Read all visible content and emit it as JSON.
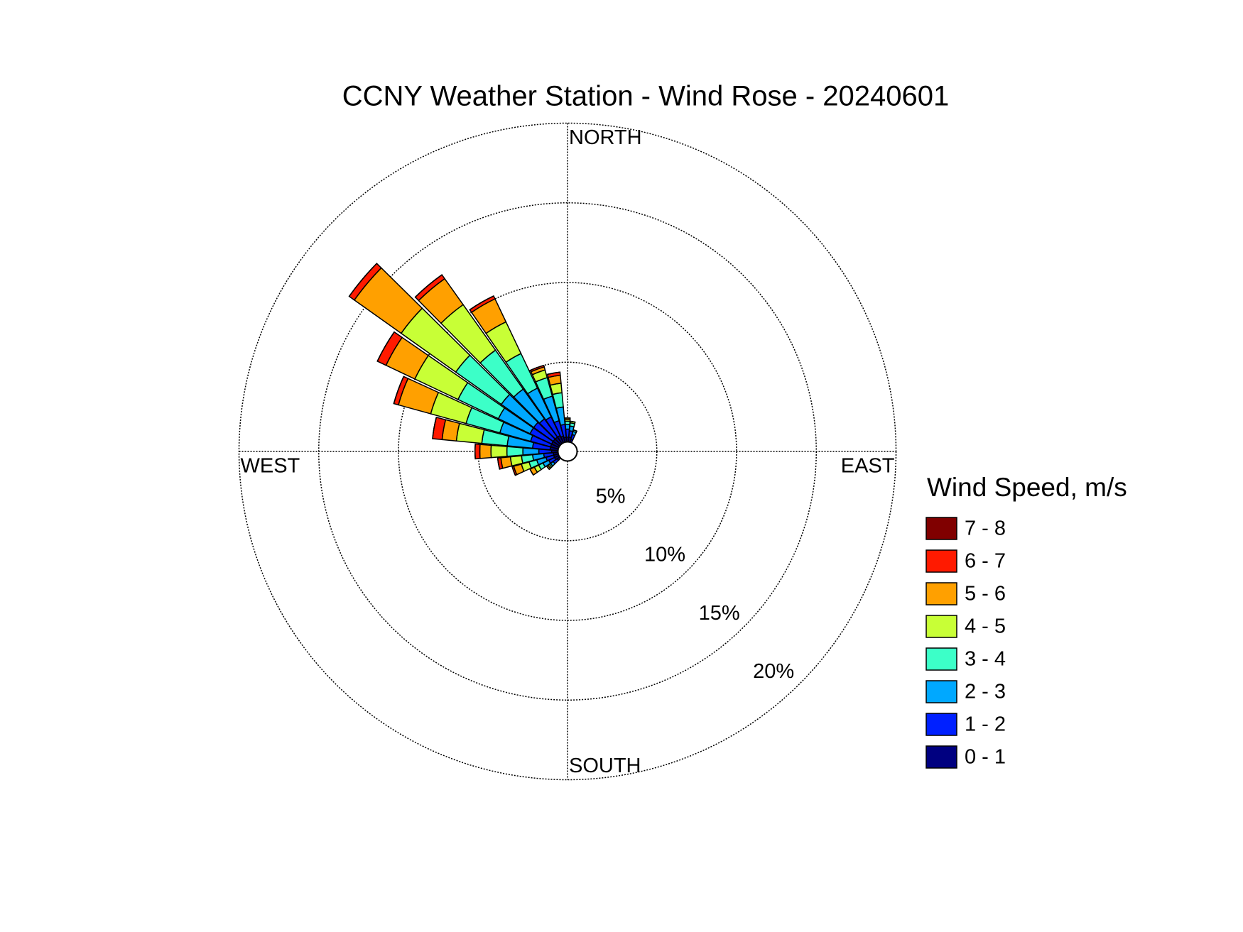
{
  "chart_data": {
    "type": "windrose",
    "title": "CCNY Weather Station - Wind Rose - 20240601",
    "legend_title": "Wind Speed, m/s",
    "direction_labels": [
      "NORTH",
      "EAST",
      "SOUTH",
      "WEST"
    ],
    "x": [
      230,
      240,
      250,
      260,
      270,
      280,
      290,
      300,
      310,
      320,
      330,
      340,
      350,
      0,
      10,
      20
    ],
    "rlim": [
      0,
      20
    ],
    "rticks": [
      {
        "value": 5,
        "label": "5%"
      },
      {
        "value": 10,
        "label": "10%"
      },
      {
        "value": 15,
        "label": "15%"
      },
      {
        "value": 20,
        "label": "20%"
      }
    ],
    "grid": true,
    "series": [
      {
        "name": "0 - 1",
        "color": "#000080",
        "values": [
          0.2,
          0.3,
          0.3,
          0.3,
          0.4,
          0.5,
          0.5,
          0.5,
          0.5,
          0.5,
          0.5,
          0.4,
          0.3,
          0.3,
          0.3,
          0.2
        ]
      },
      {
        "name": "1 - 2",
        "color": "#0020ff",
        "values": [
          0.3,
          0.4,
          0.5,
          0.6,
          0.8,
          1.1,
          1.3,
          1.5,
          1.5,
          1.4,
          1.3,
          1.0,
          0.8,
          0.5,
          0.4,
          0.3
        ]
      },
      {
        "name": "2 - 3",
        "color": "#00a8ff",
        "values": [
          0.2,
          0.4,
          0.6,
          0.7,
          1.0,
          1.6,
          2.0,
          2.2,
          2.5,
          2.3,
          2.0,
          1.6,
          1.1,
          0.3,
          0.3,
          0.2
        ]
      },
      {
        "name": "3 - 4",
        "color": "#3cffc8",
        "values": [
          0.1,
          0.3,
          0.5,
          0.7,
          1.0,
          1.6,
          2.2,
          2.8,
          3.5,
          3.0,
          2.4,
          1.2,
          0.9,
          0.2,
          0.2,
          0.1
        ]
      },
      {
        "name": "4 - 5",
        "color": "#c8ff36",
        "values": [
          0.1,
          0.3,
          0.5,
          0.7,
          1.0,
          1.6,
          2.3,
          3.0,
          4.2,
          3.5,
          2.2,
          0.5,
          0.6,
          0.1,
          0.1,
          0
        ]
      },
      {
        "name": "5 - 6",
        "color": "#ffa000",
        "values": [
          0.1,
          0.3,
          0.5,
          0.6,
          0.7,
          0.9,
          2.1,
          2.0,
          3.6,
          2.0,
          1.6,
          0.2,
          0.5,
          0.1,
          0,
          0
        ]
      },
      {
        "name": "6 - 7",
        "color": "#ff1a00",
        "values": [
          0,
          0,
          0.1,
          0.2,
          0.3,
          0.6,
          0.3,
          0.6,
          0.4,
          0.3,
          0.2,
          0.1,
          0.2,
          0,
          0,
          0
        ]
      },
      {
        "name": "7 - 8",
        "color": "#800000",
        "values": [
          0,
          0,
          0,
          0,
          0,
          0,
          0,
          0,
          0,
          0,
          0,
          0,
          0,
          0,
          0,
          0
        ]
      }
    ]
  }
}
